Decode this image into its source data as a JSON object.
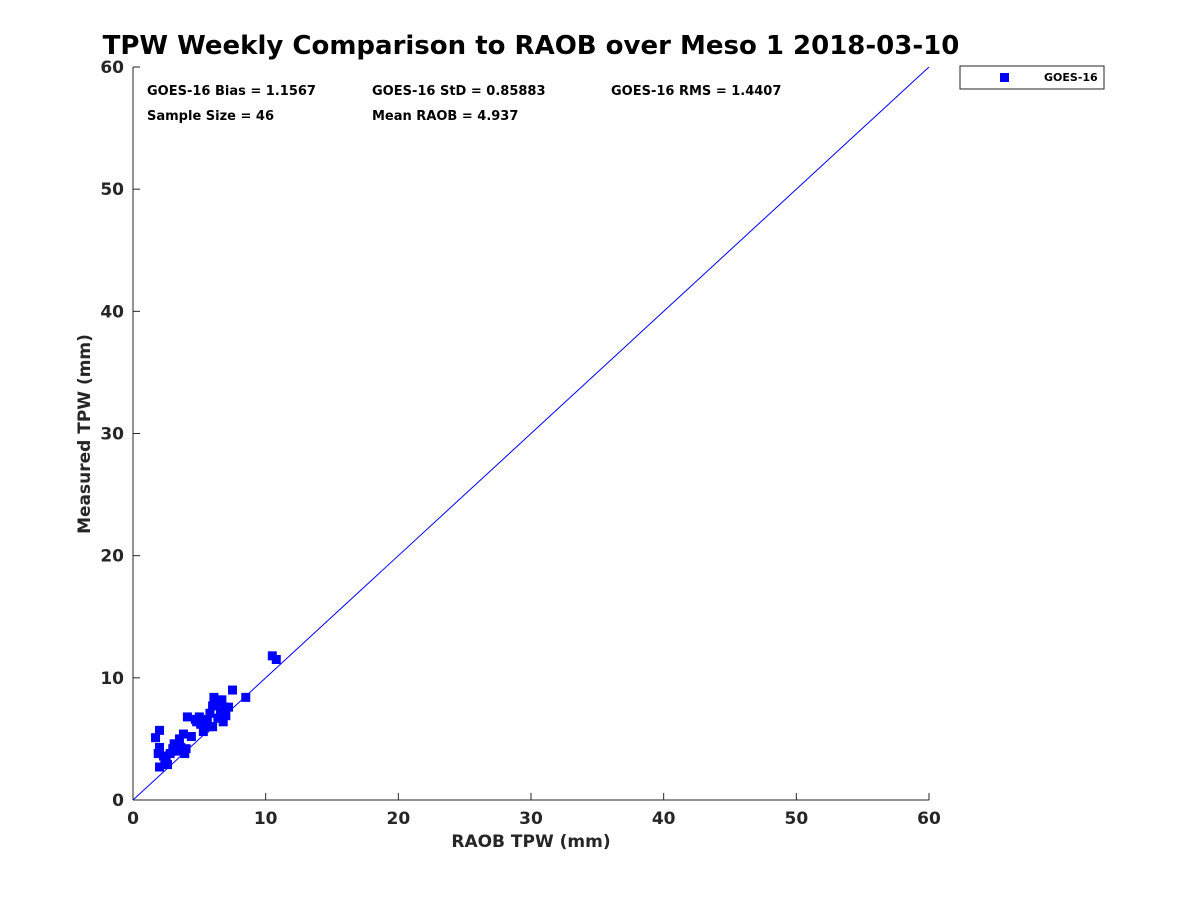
{
  "chart_data": {
    "type": "scatter",
    "title": "TPW Weekly Comparison to RAOB over Meso 1 2018-03-10",
    "xlabel": "RAOB TPW (mm)",
    "ylabel": "Measured TPW (mm)",
    "xlim": [
      0,
      60
    ],
    "ylim": [
      0,
      60
    ],
    "xticks": [
      "0",
      "10",
      "20",
      "30",
      "40",
      "50",
      "60"
    ],
    "yticks": [
      "0",
      "10",
      "20",
      "30",
      "40",
      "50",
      "60"
    ],
    "grid": false,
    "legend_position": "outside-top-right",
    "reference_line": {
      "label": "1:1 line",
      "from": [
        0,
        0
      ],
      "to": [
        60,
        60
      ],
      "color": "#0000ff"
    },
    "stats": {
      "bias": "GOES-16 Bias = 1.1567",
      "std": "GOES-16 StD = 0.85883",
      "rms": "GOES-16 RMS = 1.4407",
      "sample_size": "Sample Size = 46",
      "mean_raob": "Mean RAOB = 4.937"
    },
    "series": [
      {
        "name": "GOES-16",
        "color": "#0000ff",
        "marker": "square",
        "points": [
          [
            1.7,
            5.1
          ],
          [
            1.9,
            3.8
          ],
          [
            2.0,
            4.3
          ],
          [
            2.0,
            5.7
          ],
          [
            2.0,
            2.7
          ],
          [
            2.3,
            3.6
          ],
          [
            2.5,
            3.2
          ],
          [
            2.6,
            2.9
          ],
          [
            2.8,
            3.8
          ],
          [
            3.0,
            4.2
          ],
          [
            3.1,
            4.6
          ],
          [
            3.3,
            4.0
          ],
          [
            3.5,
            5.0
          ],
          [
            3.6,
            4.3
          ],
          [
            3.8,
            5.4
          ],
          [
            3.9,
            3.8
          ],
          [
            4.0,
            4.2
          ],
          [
            4.1,
            6.8
          ],
          [
            4.4,
            5.2
          ],
          [
            4.7,
            6.6
          ],
          [
            5.0,
            6.8
          ],
          [
            5.1,
            6.2
          ],
          [
            5.3,
            5.6
          ],
          [
            5.4,
            5.9
          ],
          [
            5.6,
            6.4
          ],
          [
            5.7,
            6.0
          ],
          [
            5.8,
            7.1
          ],
          [
            6.0,
            7.7
          ],
          [
            6.0,
            6.0
          ],
          [
            6.1,
            8.4
          ],
          [
            6.2,
            7.9
          ],
          [
            6.4,
            6.7
          ],
          [
            6.6,
            7.2
          ],
          [
            6.7,
            8.2
          ],
          [
            6.8,
            6.4
          ],
          [
            6.9,
            7.6
          ],
          [
            7.0,
            6.9
          ],
          [
            7.2,
            7.6
          ],
          [
            7.5,
            9.0
          ],
          [
            8.5,
            8.4
          ],
          [
            10.5,
            11.8
          ],
          [
            10.8,
            11.5
          ],
          [
            6.5,
            8.0
          ],
          [
            4.8,
            6.4
          ],
          [
            2.4,
            3.4
          ],
          [
            5.5,
            6.6
          ]
        ]
      }
    ]
  }
}
